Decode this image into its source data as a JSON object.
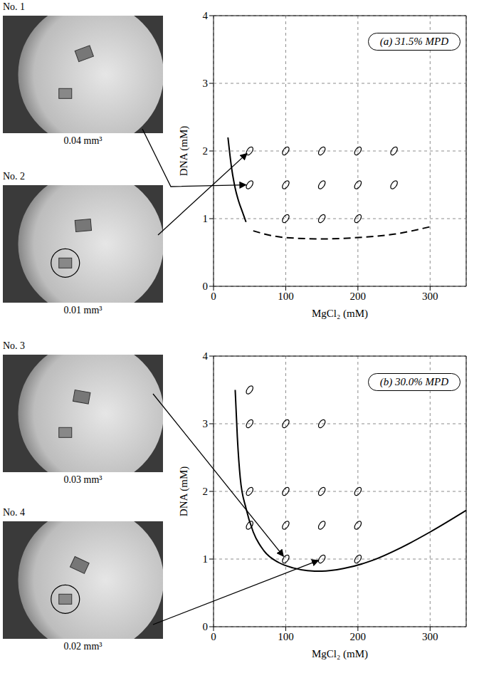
{
  "chart_data": [
    {
      "type": "scatter",
      "title": "(a) 31.5% MPD",
      "x_label": "MgCl₂ (mM)",
      "y_label": "DNA (mM)",
      "xlim": [
        0,
        350
      ],
      "ylim": [
        0,
        4
      ],
      "xticks": [
        0,
        100,
        200,
        300
      ],
      "yticks": [
        0,
        1,
        2,
        3,
        4
      ],
      "grid": true,
      "series": [
        {
          "type": "scatter",
          "marker": "ellipse",
          "color": "#000000",
          "x": [
            50,
            100,
            150,
            200,
            250,
            50,
            100,
            150,
            200,
            250,
            100,
            150,
            200
          ],
          "values": [
            2,
            2,
            2,
            2,
            2,
            1.5,
            1.5,
            1.5,
            1.5,
            1.5,
            1,
            1,
            1
          ]
        },
        {
          "type": "line",
          "line_style": "solid",
          "color": "#000000",
          "x": [
            20,
            25,
            30,
            35,
            40,
            45
          ],
          "values": [
            2.2,
            1.75,
            1.45,
            1.25,
            1.1,
            0.95
          ]
        },
        {
          "type": "line",
          "line_style": "dashed",
          "color": "#000000",
          "x": [
            55,
            80,
            100,
            150,
            200,
            250,
            300
          ],
          "values": [
            0.82,
            0.75,
            0.72,
            0.7,
            0.72,
            0.77,
            0.88
          ]
        }
      ]
    },
    {
      "type": "scatter",
      "title": "(b) 30.0% MPD",
      "x_label": "MgCl₂ (mM)",
      "y_label": "DNA (mM)",
      "xlim": [
        0,
        350
      ],
      "ylim": [
        0,
        4
      ],
      "xticks": [
        0,
        100,
        200,
        300
      ],
      "yticks": [
        0,
        1,
        2,
        3,
        4
      ],
      "grid": true,
      "series": [
        {
          "type": "scatter",
          "marker": "ellipse",
          "color": "#000000",
          "x": [
            50,
            50,
            100,
            150,
            50,
            100,
            150,
            200,
            50,
            100,
            150,
            200,
            100,
            150,
            200
          ],
          "values": [
            3.5,
            3,
            3,
            3,
            2,
            2,
            2,
            2,
            1.5,
            1.5,
            1.5,
            1.5,
            1,
            1,
            1
          ]
        },
        {
          "type": "line",
          "line_style": "solid",
          "color": "#000000",
          "x": [
            30,
            33,
            37,
            45,
            55,
            70,
            90,
            110,
            130,
            150,
            180,
            220,
            260,
            300,
            350
          ],
          "values": [
            3.5,
            2.8,
            2.2,
            1.75,
            1.4,
            1.12,
            0.95,
            0.87,
            0.83,
            0.82,
            0.86,
            0.98,
            1.17,
            1.4,
            1.72
          ]
        }
      ]
    }
  ],
  "photos": [
    {
      "label": "No. 1",
      "volume": "0.04 mm³",
      "chart": 0,
      "points_to": [
        50,
        1.5
      ]
    },
    {
      "label": "No. 2",
      "volume": "0.01 mm³",
      "chart": 0,
      "points_to": [
        50,
        2
      ]
    },
    {
      "label": "No. 3",
      "volume": "0.03 mm³",
      "chart": 1,
      "points_to": [
        100,
        1
      ]
    },
    {
      "label": "No. 4",
      "volume": "0.02 mm³",
      "chart": 1,
      "points_to": [
        150,
        1
      ]
    }
  ]
}
